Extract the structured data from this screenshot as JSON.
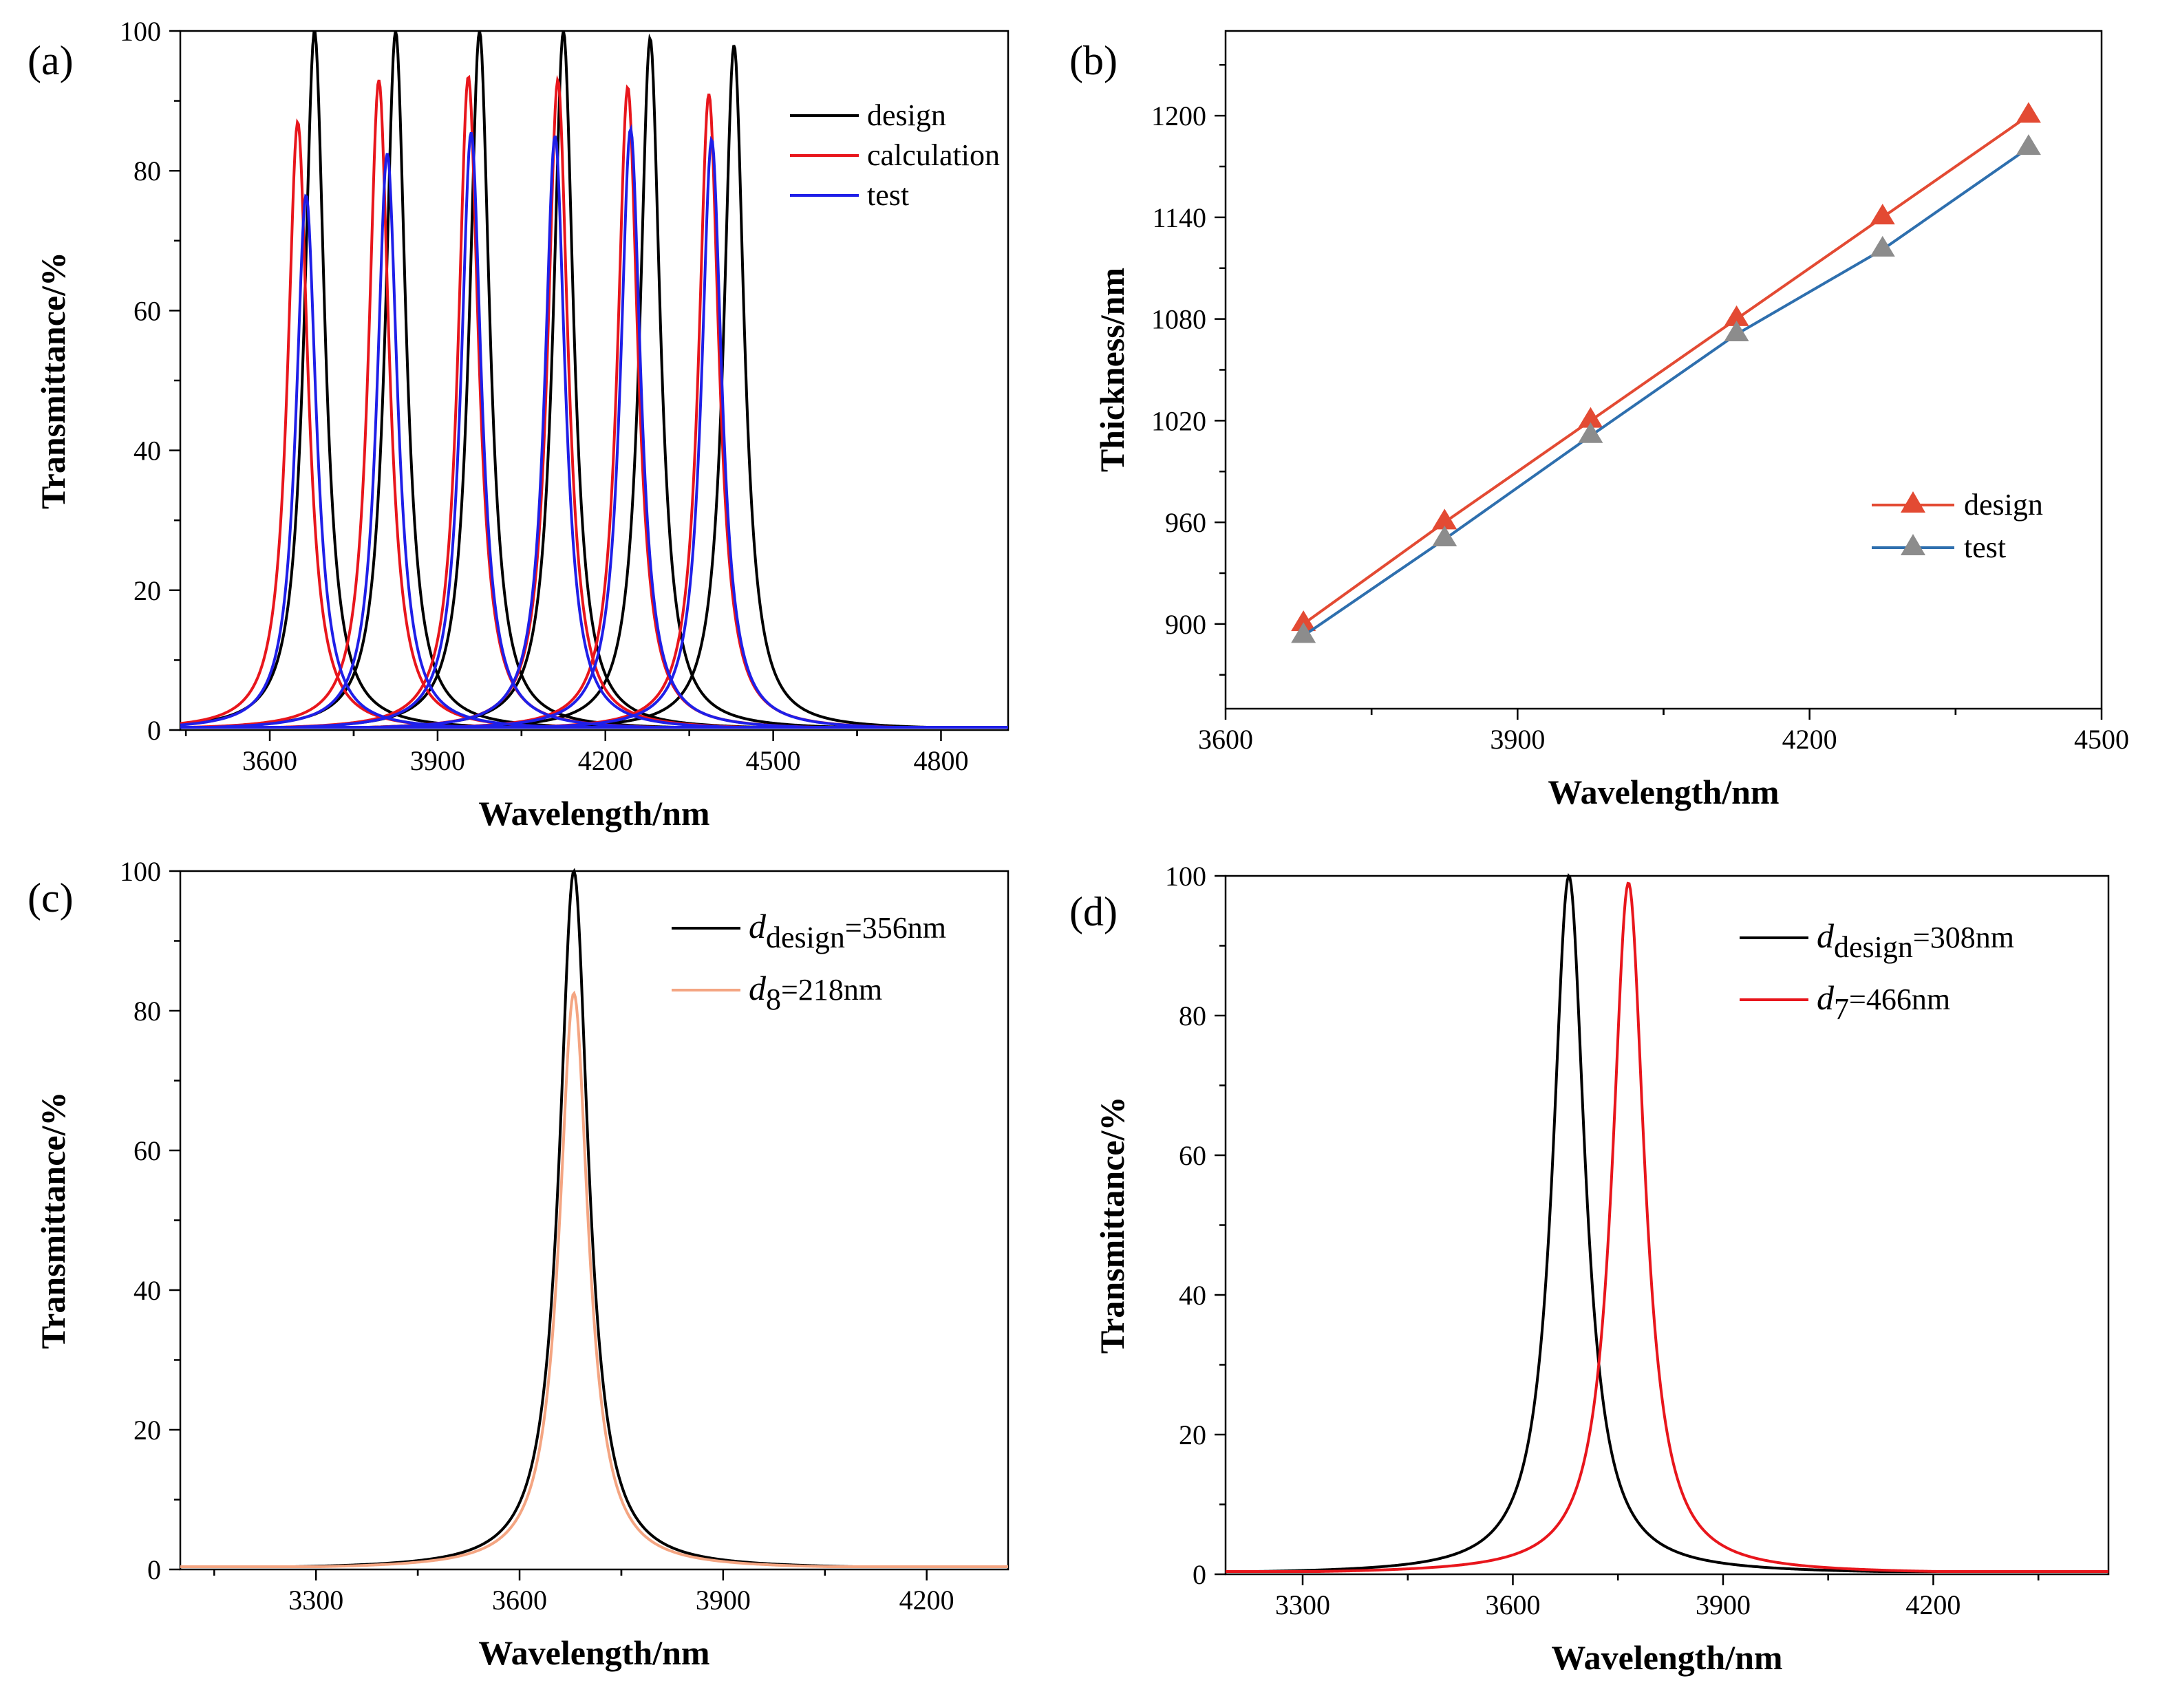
{
  "chart_data": [
    {
      "id": "a",
      "type": "line",
      "panel_label": "(a)",
      "xlabel": "Wavelength/nm",
      "ylabel": "Transmittance/%",
      "xlim": [
        3440,
        4920
      ],
      "ylim": [
        0,
        100
      ],
      "xticks": [
        3600,
        3900,
        4200,
        4500,
        4800
      ],
      "yticks": [
        0,
        20,
        40,
        60,
        80,
        100
      ],
      "legend_position": "top-right",
      "series": [
        {
          "name": "design",
          "color": "#000000",
          "peaks": [
            {
              "center": 3680,
              "height": 100
            },
            {
              "center": 3825,
              "height": 100
            },
            {
              "center": 3975,
              "height": 100
            },
            {
              "center": 4125,
              "height": 100
            },
            {
              "center": 4280,
              "height": 99
            },
            {
              "center": 4430,
              "height": 98
            }
          ]
        },
        {
          "name": "calculation",
          "color": "#e8161c",
          "peaks": [
            {
              "center": 3650,
              "height": 87
            },
            {
              "center": 3795,
              "height": 93
            },
            {
              "center": 3955,
              "height": 93.5
            },
            {
              "center": 4115,
              "height": 93
            },
            {
              "center": 4240,
              "height": 92
            },
            {
              "center": 4385,
              "height": 91
            }
          ]
        },
        {
          "name": "test",
          "color": "#1f1fe8",
          "peaks": [
            {
              "center": 3665,
              "height": 76.5
            },
            {
              "center": 3810,
              "height": 82.5
            },
            {
              "center": 3960,
              "height": 85.5
            },
            {
              "center": 4110,
              "height": 85
            },
            {
              "center": 4245,
              "height": 86
            },
            {
              "center": 4390,
              "height": 84.5
            }
          ]
        }
      ]
    },
    {
      "id": "b",
      "type": "line",
      "panel_label": "(b)",
      "xlabel": "Wavelength/nm",
      "ylabel": "Thickness/nm",
      "xlim": [
        3600,
        4500
      ],
      "ylim": [
        850,
        1250
      ],
      "xticks": [
        3600,
        3900,
        4200,
        4500
      ],
      "yticks": [
        900,
        960,
        1020,
        1080,
        1140,
        1200
      ],
      "legend_position": "center-right",
      "series": [
        {
          "name": "design",
          "color": "#e34a33",
          "marker_color": "#e34a33",
          "x": [
            3680,
            3825,
            3975,
            4125,
            4275,
            4425
          ],
          "y": [
            900,
            960,
            1020,
            1080,
            1140,
            1200
          ]
        },
        {
          "name": "test",
          "color": "#2e6fae",
          "marker_color": "#8c8c8c",
          "x": [
            3680,
            3825,
            3975,
            4125,
            4275,
            4425
          ],
          "y": [
            893,
            950,
            1011,
            1071,
            1121,
            1181
          ]
        }
      ]
    },
    {
      "id": "c",
      "type": "line",
      "panel_label": "(c)",
      "xlabel": "Wavelength/nm",
      "ylabel": "Transmittance/%",
      "xlim": [
        3100,
        4320
      ],
      "ylim": [
        0,
        100
      ],
      "xticks": [
        3300,
        3600,
        3900,
        4200
      ],
      "yticks": [
        0,
        20,
        40,
        60,
        80,
        100
      ],
      "legend_position": "top-right",
      "series": [
        {
          "name": "d_design=356nm",
          "italic": "d",
          "sub": "design",
          "rest": "=356nm",
          "color": "#000000",
          "peaks": [
            {
              "center": 3680,
              "height": 100
            }
          ]
        },
        {
          "name": "d_8=218nm",
          "italic": "d",
          "sub": "8",
          "rest": "=218nm",
          "color": "#f4a582",
          "peaks": [
            {
              "center": 3680,
              "height": 82.5
            }
          ]
        }
      ]
    },
    {
      "id": "d",
      "type": "line",
      "panel_label": "(d)",
      "xlabel": "Wavelength/nm",
      "ylabel": "Transmittance/%",
      "xlim": [
        3190,
        4450
      ],
      "ylim": [
        0,
        100
      ],
      "xticks": [
        3300,
        3600,
        3900,
        4200
      ],
      "yticks": [
        0,
        20,
        40,
        60,
        80,
        100
      ],
      "legend_position": "top-right",
      "series": [
        {
          "name": "d_design=308nm",
          "italic": "d",
          "sub": "design",
          "rest": "=308nm",
          "color": "#000000",
          "peaks": [
            {
              "center": 3680,
              "height": 100
            }
          ]
        },
        {
          "name": "d_7=466nm",
          "italic": "d",
          "sub": "7",
          "rest": "=466nm",
          "color": "#e8161c",
          "peaks": [
            {
              "center": 3765,
              "height": 99
            }
          ]
        }
      ]
    }
  ]
}
